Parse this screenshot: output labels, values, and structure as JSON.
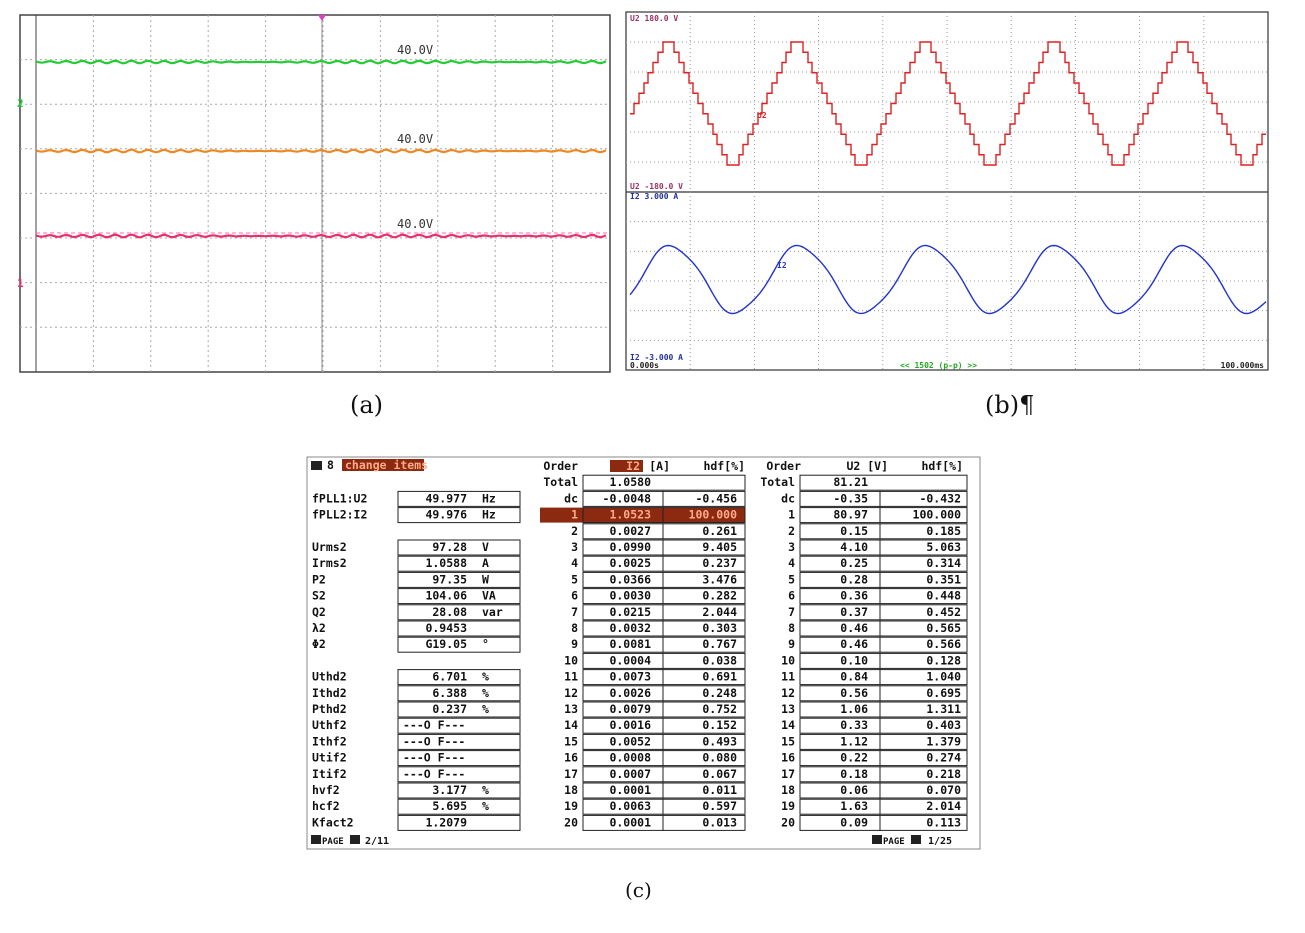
{
  "panel_a": {
    "trace_labels": [
      "40.0V",
      "40.0V",
      "40.0V"
    ],
    "channel_markers": [
      "2",
      "1"
    ]
  },
  "panel_b": {
    "u_max": "U2  180.0 V",
    "u_min": "U2  -180.0 V",
    "i_max": "I2  3.000 A",
    "i_min": "I2  -3.000 A",
    "u_trace": "U2",
    "i_trace": "I2",
    "t_start": "0.000s",
    "t_end": "100.000ms",
    "mode": "<< 1502 (p-p) >>"
  },
  "captions": [
    "(a)",
    "(b)¶",
    "(c)"
  ],
  "panel_c": {
    "page_number": "8",
    "menu": "change items",
    "params": [
      [
        [
          "fPLL1:U2",
          "49.977",
          "Hz"
        ],
        [
          "fPLL2:I2",
          "49.976",
          "Hz"
        ]
      ],
      [
        [
          "Urms2",
          "97.28",
          "V"
        ],
        [
          "Irms2",
          "1.0588",
          "A"
        ],
        [
          "P2",
          "97.35",
          "W"
        ],
        [
          "S2",
          "104.06",
          "VA"
        ],
        [
          "Q2",
          "28.08",
          "var"
        ],
        [
          "λ2",
          "0.9453"
        ],
        [
          "Φ2",
          "G19.05",
          "°"
        ]
      ],
      [
        [
          "Uthd2",
          "6.701",
          "%"
        ],
        [
          "Ithd2",
          "6.388",
          "%"
        ],
        [
          "Pthd2",
          "0.237",
          "%"
        ],
        [
          "Uthf2",
          "---O F---"
        ],
        [
          "Ithf2",
          "---O F---"
        ],
        [
          "Utif2",
          "---O F---"
        ],
        [
          "Itif2",
          "---O F---"
        ],
        [
          "hvf2",
          "3.177",
          "%"
        ],
        [
          "hcf2",
          "5.695",
          "%"
        ],
        [
          "Kfact2",
          "1.2079"
        ]
      ]
    ],
    "current_header": [
      "Order",
      "I2",
      "[A]",
      "hdf[%]"
    ],
    "voltage_header": [
      "Order",
      "U2 [V]",
      "hdf[%]"
    ],
    "current_rows": [
      [
        "Total",
        "1.0580"
      ],
      [
        "dc",
        "-0.0048",
        "-0.456"
      ],
      [
        "1",
        "1.0523",
        "100.000"
      ],
      [
        "2",
        "0.0027",
        "0.261"
      ],
      [
        "3",
        "0.0990",
        "9.405"
      ],
      [
        "4",
        "0.0025",
        "0.237"
      ],
      [
        "5",
        "0.0366",
        "3.476"
      ],
      [
        "6",
        "0.0030",
        "0.282"
      ],
      [
        "7",
        "0.0215",
        "2.044"
      ],
      [
        "8",
        "0.0032",
        "0.303"
      ],
      [
        "9",
        "0.0081",
        "0.767"
      ],
      [
        "10",
        "0.0004",
        "0.038"
      ],
      [
        "11",
        "0.0073",
        "0.691"
      ],
      [
        "12",
        "0.0026",
        "0.248"
      ],
      [
        "13",
        "0.0079",
        "0.752"
      ],
      [
        "14",
        "0.0016",
        "0.152"
      ],
      [
        "15",
        "0.0052",
        "0.493"
      ],
      [
        "16",
        "0.0008",
        "0.080"
      ],
      [
        "17",
        "0.0007",
        "0.067"
      ],
      [
        "18",
        "0.0001",
        "0.011"
      ],
      [
        "19",
        "0.0063",
        "0.597"
      ],
      [
        "20",
        "0.0001",
        "0.013"
      ]
    ],
    "voltage_rows": [
      [
        "Total",
        "81.21"
      ],
      [
        "dc",
        "-0.35",
        "-0.432"
      ],
      [
        "1",
        "80.97",
        "100.000"
      ],
      [
        "2",
        "0.15",
        "0.185"
      ],
      [
        "3",
        "4.10",
        "5.063"
      ],
      [
        "4",
        "0.25",
        "0.314"
      ],
      [
        "5",
        "0.28",
        "0.351"
      ],
      [
        "6",
        "0.36",
        "0.448"
      ],
      [
        "7",
        "0.37",
        "0.452"
      ],
      [
        "8",
        "0.46",
        "0.565"
      ],
      [
        "9",
        "0.46",
        "0.566"
      ],
      [
        "10",
        "0.10",
        "0.128"
      ],
      [
        "11",
        "0.84",
        "1.040"
      ],
      [
        "12",
        "0.56",
        "0.695"
      ],
      [
        "13",
        "1.06",
        "1.311"
      ],
      [
        "14",
        "0.33",
        "0.403"
      ],
      [
        "15",
        "1.12",
        "1.379"
      ],
      [
        "16",
        "0.22",
        "0.274"
      ],
      [
        "17",
        "0.18",
        "0.218"
      ],
      [
        "18",
        "0.06",
        "0.070"
      ],
      [
        "19",
        "1.63",
        "2.014"
      ],
      [
        "20",
        "0.09",
        "0.113"
      ]
    ],
    "footer_left": [
      "PAGE",
      "2/11"
    ],
    "footer_right": [
      "PAGE",
      "1/25"
    ]
  }
}
